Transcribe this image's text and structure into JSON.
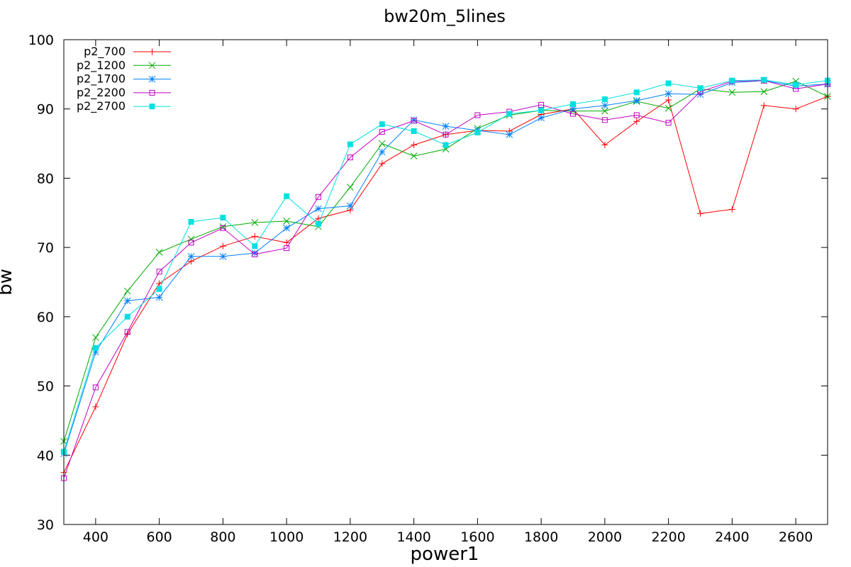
{
  "chart_data": {
    "type": "line",
    "title": "bw20m_5lines",
    "xlabel": "power1",
    "ylabel": "bw",
    "xlim": [
      300,
      2700
    ],
    "ylim": [
      30,
      100
    ],
    "xticks": [
      400,
      600,
      800,
      1000,
      1200,
      1400,
      1600,
      1800,
      2000,
      2200,
      2400,
      2600
    ],
    "yticks": [
      30,
      40,
      50,
      60,
      70,
      80,
      90,
      100
    ],
    "grid": false,
    "legend_position": "top-left",
    "x": [
      300,
      400,
      500,
      600,
      700,
      800,
      900,
      1000,
      1100,
      1200,
      1300,
      1400,
      1500,
      1600,
      1700,
      1800,
      1900,
      2000,
      2100,
      2200,
      2300,
      2400,
      2500,
      2600,
      2700
    ],
    "series": [
      {
        "name": "p2_700",
        "color": "#ff0000",
        "marker": "plus",
        "values": [
          37.5,
          47.0,
          57.5,
          64.8,
          68.0,
          70.2,
          71.6,
          70.7,
          74.2,
          75.4,
          82.1,
          84.8,
          86.3,
          86.9,
          86.8,
          89.2,
          90.0,
          84.8,
          88.2,
          91.3,
          74.9,
          75.5,
          90.5,
          90.0,
          91.8
        ]
      },
      {
        "name": "p2_1200",
        "color": "#00aa00",
        "marker": "x",
        "values": [
          42.0,
          57.0,
          63.7,
          69.3,
          71.2,
          73.0,
          73.6,
          73.8,
          73.0,
          78.7,
          85.0,
          83.2,
          84.2,
          87.2,
          89.1,
          89.8,
          89.7,
          89.7,
          91.1,
          90.1,
          92.9,
          92.4,
          92.5,
          94.0,
          91.8
        ]
      },
      {
        "name": "p2_1700",
        "color": "#0080ff",
        "marker": "star",
        "values": [
          40.2,
          54.9,
          62.3,
          62.8,
          68.7,
          68.7,
          69.2,
          72.8,
          75.6,
          76.0,
          83.8,
          88.4,
          87.5,
          86.9,
          86.3,
          88.7,
          90.0,
          90.5,
          91.2,
          92.2,
          92.1,
          93.8,
          94.1,
          93.3,
          93.6
        ]
      },
      {
        "name": "p2_2200",
        "color": "#c000c0",
        "marker": "square",
        "values": [
          36.7,
          49.8,
          57.8,
          66.5,
          70.7,
          72.8,
          69.0,
          69.9,
          77.3,
          83.0,
          86.7,
          88.3,
          86.3,
          89.1,
          89.6,
          90.6,
          89.3,
          88.4,
          89.1,
          88.0,
          92.5,
          94.0,
          94.1,
          92.9,
          93.6
        ]
      },
      {
        "name": "p2_2700",
        "color": "#00e0e0",
        "marker": "filled-square",
        "values": [
          40.5,
          55.5,
          60.0,
          64.0,
          73.7,
          74.3,
          70.2,
          77.4,
          73.4,
          84.9,
          87.8,
          86.8,
          84.8,
          86.6,
          89.3,
          89.8,
          90.7,
          91.4,
          92.4,
          93.7,
          93.0,
          94.1,
          94.2,
          93.5,
          94.1
        ]
      }
    ]
  }
}
